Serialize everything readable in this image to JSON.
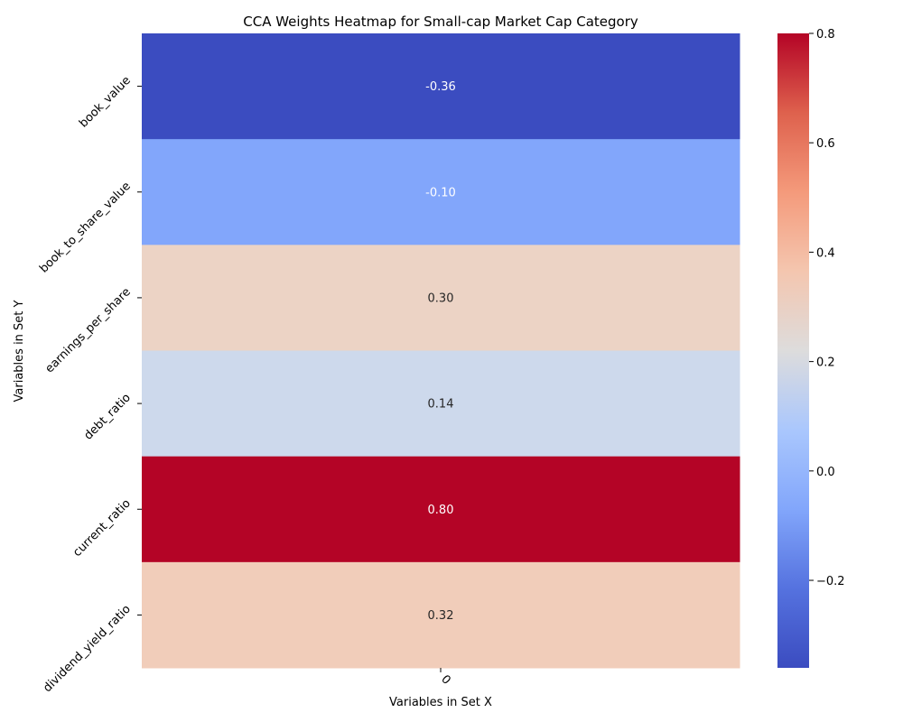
{
  "chart_data": {
    "type": "heatmap",
    "title": "CCA Weights Heatmap for Small-cap Market Cap Category",
    "xlabel": "Variables in Set X",
    "ylabel": "Variables in Set Y",
    "x_categories": [
      "0"
    ],
    "y_categories": [
      "book_value",
      "book_to_share_value",
      "earnings_per_share",
      "debt_ratio",
      "current_ratio",
      "dividend_yield_ratio"
    ],
    "values": [
      [
        -0.36
      ],
      [
        -0.1
      ],
      [
        0.3
      ],
      [
        0.14
      ],
      [
        0.8
      ],
      [
        0.32
      ]
    ],
    "value_labels": [
      "-0.36",
      "-0.10",
      "0.30",
      "0.14",
      "0.80",
      "0.32"
    ],
    "cell_colors": [
      "#3b4cc0",
      "#82a6fb",
      "#ecd3c5",
      "#cdd9ec",
      "#b40426",
      "#f1cdba"
    ],
    "label_colors": [
      "#ffffff",
      "#ffffff",
      "#262626",
      "#262626",
      "#ffffff",
      "#262626"
    ],
    "colormap": "coolwarm",
    "colorbar": {
      "vmin": -0.36,
      "vmax": 0.8,
      "ticks": [
        -0.2,
        0.0,
        0.2,
        0.4,
        0.6,
        0.8
      ],
      "tick_labels": [
        "−0.2",
        "0.0",
        "0.2",
        "0.4",
        "0.6",
        "0.8"
      ]
    }
  }
}
